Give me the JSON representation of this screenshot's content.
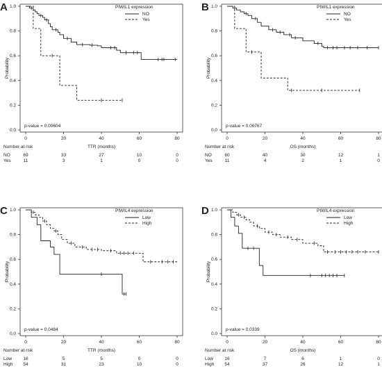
{
  "chart_data": [
    {
      "type": "line",
      "panel": "A",
      "xlabel": "TTR (months)",
      "ylabel": "Probability",
      "xlim": [
        0,
        80
      ],
      "ylim": [
        0.0,
        1.0
      ],
      "xticks": [
        "0",
        "20",
        "40",
        "60",
        "80"
      ],
      "yticks": [
        "0.0",
        "0.2",
        "0.4",
        "0.6",
        "0.8",
        "1.0"
      ],
      "legend_title": "PIWIL1 expression",
      "legend_position": "top-right",
      "pvalue": "p-value = 0.00604",
      "series": [
        {
          "name": "NO",
          "style": "solid",
          "x": [
            0,
            2,
            4,
            5,
            6,
            7,
            9,
            10,
            12,
            13,
            14,
            17,
            18,
            20,
            24,
            27,
            34,
            38,
            40,
            48,
            50,
            61,
            80
          ],
          "y": [
            1.0,
            0.985,
            0.97,
            0.955,
            0.94,
            0.925,
            0.91,
            0.89,
            0.86,
            0.835,
            0.81,
            0.79,
            0.77,
            0.74,
            0.71,
            0.69,
            0.685,
            0.68,
            0.665,
            0.645,
            0.625,
            0.57,
            0.57
          ],
          "censor_x": [
            3,
            8,
            11,
            16,
            22,
            30,
            35,
            45,
            47,
            53,
            57,
            59,
            70,
            72,
            73,
            79
          ],
          "censor_y": [
            0.985,
            0.925,
            0.89,
            0.81,
            0.74,
            0.69,
            0.685,
            0.665,
            0.665,
            0.625,
            0.625,
            0.625,
            0.57,
            0.57,
            0.57,
            0.57
          ]
        },
        {
          "name": "Yes",
          "style": "dashed",
          "x": [
            0,
            4,
            8,
            18,
            27,
            51
          ],
          "y": [
            1.0,
            0.82,
            0.6,
            0.36,
            0.24,
            0.24
          ],
          "censor_x": [
            14,
            40,
            51
          ],
          "censor_y": [
            0.6,
            0.24,
            0.24
          ]
        }
      ],
      "risk_table": {
        "title": "Number at risk",
        "groups": [
          "NO",
          "Yes"
        ],
        "times": [
          0,
          20,
          40,
          60,
          80
        ],
        "counts": [
          [
            "69",
            "33",
            "27",
            "10",
            "0"
          ],
          [
            "11",
            "3",
            "1",
            "0",
            "0"
          ]
        ]
      }
    },
    {
      "type": "line",
      "panel": "B",
      "xlabel": "OS (months)",
      "ylabel": "Probability",
      "xlim": [
        0,
        80
      ],
      "ylim": [
        0.0,
        1.0
      ],
      "xticks": [
        "0",
        "20",
        "40",
        "60",
        "80"
      ],
      "yticks": [
        "0.0",
        "0.2",
        "0.4",
        "0.6",
        "0.8",
        "1.0"
      ],
      "legend_title": "PIWIL1 expression",
      "legend_position": "top-right",
      "pvalue": "p-value = 0.00767",
      "series": [
        {
          "name": "NO",
          "style": "solid",
          "x": [
            0,
            3,
            5,
            7,
            9,
            11,
            13,
            16,
            18,
            22,
            26,
            30,
            34,
            40,
            46,
            50,
            51,
            80
          ],
          "y": [
            1.0,
            0.985,
            0.97,
            0.955,
            0.94,
            0.925,
            0.9,
            0.87,
            0.84,
            0.81,
            0.79,
            0.77,
            0.745,
            0.72,
            0.7,
            0.675,
            0.665,
            0.665
          ],
          "censor_x": [
            4,
            10,
            15,
            24,
            28,
            33,
            36,
            48,
            53,
            56,
            58,
            62,
            65,
            69,
            74,
            80
          ],
          "censor_y": [
            0.985,
            0.94,
            0.9,
            0.81,
            0.79,
            0.77,
            0.745,
            0.7,
            0.665,
            0.665,
            0.665,
            0.665,
            0.665,
            0.665,
            0.665,
            0.665
          ]
        },
        {
          "name": "Yes",
          "style": "dashed",
          "x": [
            0,
            4,
            10,
            18,
            32,
            70
          ],
          "y": [
            1.0,
            0.82,
            0.63,
            0.42,
            0.32,
            0.32
          ],
          "censor_x": [
            13,
            34,
            50,
            70
          ],
          "censor_y": [
            0.63,
            0.32,
            0.32,
            0.32
          ]
        }
      ],
      "risk_table": {
        "title": "Number at risk",
        "groups": [
          "NO",
          "Yes"
        ],
        "times": [
          0,
          20,
          40,
          60,
          80
        ],
        "counts": [
          [
            "60",
            "40",
            "30",
            "12",
            "1"
          ],
          [
            "11",
            "4",
            "2",
            "1",
            "0"
          ]
        ]
      }
    },
    {
      "type": "line",
      "panel": "C",
      "xlabel": "TTR (months)",
      "ylabel": "Probability",
      "xlim": [
        0,
        80
      ],
      "ylim": [
        0.0,
        1.0
      ],
      "xticks": [
        "0",
        "20",
        "40",
        "60",
        "80"
      ],
      "yticks": [
        "0.0",
        "0.2",
        "0.4",
        "0.6",
        "0.8",
        "1.0"
      ],
      "legend_title": "PIWIL4 expression",
      "legend_position": "top-right",
      "pvalue": "p-value = 0.0484",
      "series": [
        {
          "name": "Low",
          "style": "solid",
          "x": [
            0,
            3,
            6,
            8,
            13,
            15,
            18,
            49,
            51,
            53
          ],
          "y": [
            1.0,
            0.94,
            0.88,
            0.75,
            0.7,
            0.64,
            0.48,
            0.48,
            0.32,
            0.32
          ],
          "censor_x": [
            40,
            52,
            53
          ],
          "censor_y": [
            0.48,
            0.32,
            0.32
          ]
        },
        {
          "name": "High",
          "style": "dashed",
          "x": [
            0,
            3,
            5,
            7,
            9,
            11,
            13,
            15,
            17,
            19,
            22,
            26,
            32,
            40,
            48,
            62,
            80
          ],
          "y": [
            1.0,
            0.98,
            0.96,
            0.94,
            0.91,
            0.88,
            0.85,
            0.83,
            0.8,
            0.76,
            0.73,
            0.7,
            0.68,
            0.67,
            0.65,
            0.58,
            0.58
          ],
          "censor_x": [
            4,
            10,
            16,
            24,
            30,
            35,
            38,
            45,
            50,
            52,
            54,
            57,
            66,
            72,
            75,
            78
          ],
          "censor_y": [
            0.98,
            0.91,
            0.83,
            0.73,
            0.7,
            0.68,
            0.68,
            0.67,
            0.65,
            0.65,
            0.65,
            0.65,
            0.58,
            0.58,
            0.58,
            0.58
          ]
        }
      ],
      "risk_table": {
        "title": "Number at risk",
        "groups": [
          "Low",
          "High"
        ],
        "times": [
          0,
          20,
          40,
          60,
          80
        ],
        "counts": [
          [
            "16",
            "5",
            "5",
            "0",
            "0"
          ],
          [
            "54",
            "31",
            "23",
            "10",
            "0"
          ]
        ]
      }
    },
    {
      "type": "line",
      "panel": "D",
      "xlabel": "OS (months)",
      "ylabel": "Probability",
      "xlim": [
        0,
        80
      ],
      "ylim": [
        0.0,
        1.0
      ],
      "xticks": [
        "0",
        "20",
        "40",
        "60",
        "80"
      ],
      "yticks": [
        "0.0",
        "0.2",
        "0.4",
        "0.6",
        "0.8",
        "1.0"
      ],
      "legend_title": "PIWIL4 expression",
      "legend_position": "top-right",
      "pvalue": "p-value = 0.0339",
      "series": [
        {
          "name": "Low",
          "style": "solid",
          "x": [
            0,
            2,
            4,
            6,
            8,
            17,
            19,
            62
          ],
          "y": [
            1.0,
            0.94,
            0.87,
            0.81,
            0.69,
            0.55,
            0.47,
            0.47
          ],
          "censor_x": [
            11,
            14,
            44,
            50,
            52,
            54,
            56,
            58,
            62
          ],
          "censor_y": [
            0.69,
            0.69,
            0.47,
            0.47,
            0.47,
            0.47,
            0.47,
            0.47,
            0.47
          ]
        },
        {
          "name": "High",
          "style": "dashed",
          "x": [
            0,
            3,
            5,
            7,
            10,
            12,
            14,
            17,
            20,
            24,
            28,
            34,
            40,
            48,
            51,
            80
          ],
          "y": [
            1.0,
            0.98,
            0.96,
            0.94,
            0.92,
            0.9,
            0.87,
            0.85,
            0.82,
            0.8,
            0.78,
            0.76,
            0.73,
            0.71,
            0.66,
            0.66
          ],
          "censor_x": [
            6,
            9,
            16,
            22,
            26,
            32,
            37,
            46,
            53,
            57,
            60,
            63,
            66,
            69,
            73,
            80
          ],
          "censor_y": [
            0.96,
            0.94,
            0.87,
            0.82,
            0.8,
            0.78,
            0.76,
            0.73,
            0.66,
            0.66,
            0.66,
            0.66,
            0.66,
            0.66,
            0.66,
            0.66
          ]
        }
      ],
      "risk_table": {
        "title": "Number at risk",
        "groups": [
          "Low",
          "High"
        ],
        "times": [
          0,
          20,
          40,
          60,
          80
        ],
        "counts": [
          [
            "16",
            "7",
            "6",
            "1",
            "0"
          ],
          [
            "54",
            "37",
            "26",
            "12",
            "1"
          ]
        ]
      }
    }
  ]
}
